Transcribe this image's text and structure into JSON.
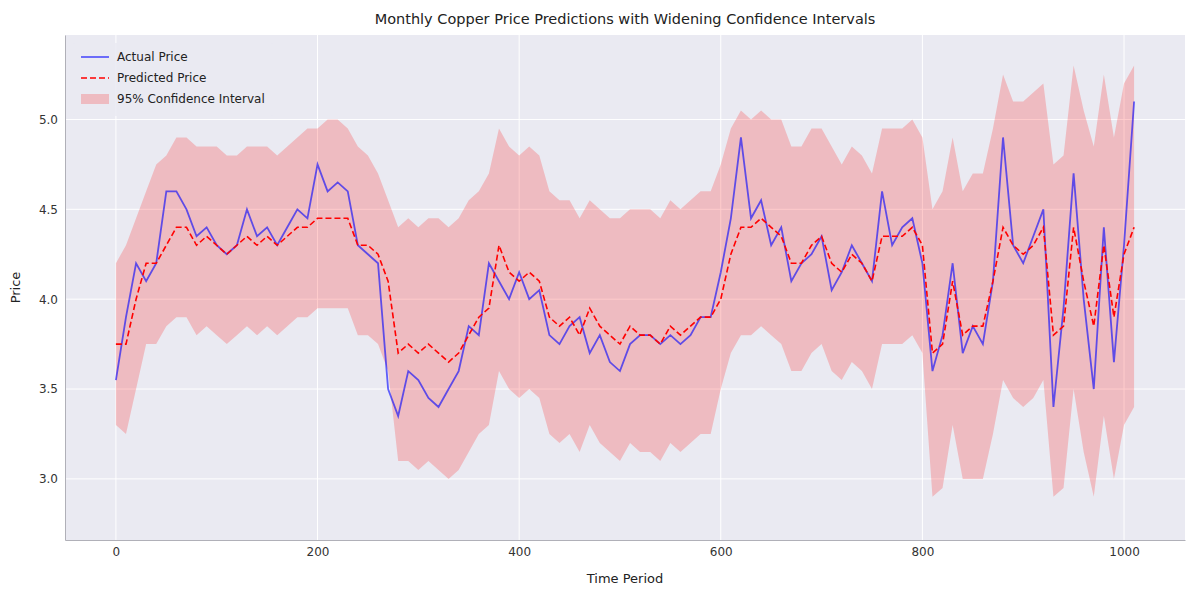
{
  "chart_data": {
    "type": "line",
    "title": "Monthly Copper Price Predictions with Widening Confidence Intervals",
    "x_label": "Time Period",
    "y_label": "Price",
    "x": [
      0,
      10,
      20,
      30,
      40,
      50,
      60,
      70,
      80,
      90,
      100,
      110,
      120,
      130,
      140,
      150,
      160,
      170,
      180,
      190,
      200,
      210,
      220,
      230,
      240,
      250,
      260,
      270,
      280,
      290,
      300,
      310,
      320,
      330,
      340,
      350,
      360,
      370,
      380,
      390,
      400,
      410,
      420,
      430,
      440,
      450,
      460,
      470,
      480,
      490,
      500,
      510,
      520,
      530,
      540,
      550,
      560,
      570,
      580,
      590,
      600,
      610,
      620,
      630,
      640,
      650,
      660,
      670,
      680,
      690,
      700,
      710,
      720,
      730,
      740,
      750,
      760,
      770,
      780,
      790,
      800,
      810,
      820,
      830,
      840,
      850,
      860,
      870,
      880,
      890,
      900,
      910,
      920,
      930,
      940,
      950,
      960,
      970,
      980,
      990,
      1000,
      1010
    ],
    "series": [
      {
        "name": "Actual Price",
        "color": "blue",
        "line_style": "solid",
        "values": [
          3.55,
          3.9,
          4.2,
          4.1,
          4.2,
          4.6,
          4.6,
          4.5,
          4.35,
          4.4,
          4.3,
          4.25,
          4.3,
          4.5,
          4.35,
          4.4,
          4.3,
          4.4,
          4.5,
          4.45,
          4.75,
          4.6,
          4.65,
          4.6,
          4.3,
          4.25,
          4.2,
          3.5,
          3.35,
          3.6,
          3.55,
          3.45,
          3.4,
          3.5,
          3.6,
          3.85,
          3.8,
          4.2,
          4.1,
          4.0,
          4.15,
          4.0,
          4.05,
          3.8,
          3.75,
          3.85,
          3.9,
          3.7,
          3.8,
          3.65,
          3.6,
          3.75,
          3.8,
          3.8,
          3.75,
          3.8,
          3.75,
          3.8,
          3.9,
          3.9,
          4.15,
          4.45,
          4.9,
          4.45,
          4.55,
          4.3,
          4.4,
          4.1,
          4.2,
          4.25,
          4.35,
          4.05,
          4.15,
          4.3,
          4.2,
          4.1,
          4.6,
          4.3,
          4.4,
          4.45,
          4.2,
          3.6,
          3.8,
          4.2,
          3.7,
          3.85,
          3.75,
          4.1,
          4.9,
          4.3,
          4.2,
          4.35,
          4.5,
          3.4,
          3.95,
          4.7,
          4.0,
          3.5,
          4.4,
          3.65,
          4.3,
          5.1
        ]
      },
      {
        "name": "Predicted Price",
        "color": "red",
        "line_style": "dashed",
        "values": [
          3.75,
          3.75,
          4.0,
          4.2,
          4.2,
          4.3,
          4.4,
          4.4,
          4.3,
          4.35,
          4.3,
          4.25,
          4.3,
          4.35,
          4.3,
          4.35,
          4.3,
          4.35,
          4.4,
          4.4,
          4.45,
          4.45,
          4.45,
          4.45,
          4.3,
          4.3,
          4.25,
          4.1,
          3.7,
          3.75,
          3.7,
          3.75,
          3.7,
          3.65,
          3.7,
          3.8,
          3.9,
          3.95,
          4.3,
          4.15,
          4.1,
          4.15,
          4.1,
          3.9,
          3.85,
          3.9,
          3.8,
          3.95,
          3.85,
          3.8,
          3.75,
          3.85,
          3.8,
          3.8,
          3.75,
          3.85,
          3.8,
          3.85,
          3.9,
          3.9,
          4.0,
          4.25,
          4.4,
          4.4,
          4.45,
          4.4,
          4.35,
          4.2,
          4.2,
          4.3,
          4.35,
          4.2,
          4.15,
          4.25,
          4.2,
          4.1,
          4.35,
          4.35,
          4.35,
          4.4,
          4.3,
          3.7,
          3.75,
          4.1,
          3.8,
          3.85,
          3.85,
          4.1,
          4.4,
          4.3,
          4.25,
          4.3,
          4.4,
          3.8,
          3.85,
          4.4,
          4.1,
          3.85,
          4.3,
          3.9,
          4.25,
          4.4
        ]
      },
      {
        "name": "95% Confidence Interval",
        "type": "area",
        "color": "red",
        "lower": [
          3.3,
          3.25,
          3.5,
          3.75,
          3.75,
          3.85,
          3.9,
          3.9,
          3.8,
          3.85,
          3.8,
          3.75,
          3.8,
          3.85,
          3.8,
          3.85,
          3.8,
          3.85,
          3.9,
          3.9,
          3.95,
          3.95,
          3.95,
          3.95,
          3.8,
          3.8,
          3.75,
          3.6,
          3.1,
          3.1,
          3.05,
          3.1,
          3.05,
          3.0,
          3.05,
          3.15,
          3.25,
          3.3,
          3.6,
          3.5,
          3.45,
          3.5,
          3.45,
          3.25,
          3.2,
          3.25,
          3.15,
          3.3,
          3.2,
          3.15,
          3.1,
          3.2,
          3.15,
          3.15,
          3.1,
          3.2,
          3.15,
          3.2,
          3.25,
          3.25,
          3.5,
          3.7,
          3.8,
          3.8,
          3.85,
          3.8,
          3.75,
          3.6,
          3.6,
          3.7,
          3.75,
          3.6,
          3.55,
          3.65,
          3.6,
          3.5,
          3.75,
          3.75,
          3.75,
          3.8,
          3.7,
          2.9,
          2.95,
          3.3,
          3.0,
          3.0,
          3.0,
          3.25,
          3.55,
          3.45,
          3.4,
          3.45,
          3.55,
          2.9,
          2.95,
          3.5,
          3.15,
          2.9,
          3.35,
          3.0,
          3.3,
          3.4
        ],
        "upper": [
          4.2,
          4.3,
          4.45,
          4.6,
          4.75,
          4.8,
          4.9,
          4.9,
          4.85,
          4.85,
          4.85,
          4.8,
          4.8,
          4.85,
          4.85,
          4.85,
          4.8,
          4.85,
          4.9,
          4.95,
          4.95,
          5.0,
          5.0,
          4.95,
          4.85,
          4.8,
          4.7,
          4.55,
          4.4,
          4.45,
          4.4,
          4.45,
          4.45,
          4.4,
          4.45,
          4.55,
          4.6,
          4.7,
          4.95,
          4.85,
          4.8,
          4.85,
          4.8,
          4.6,
          4.55,
          4.55,
          4.45,
          4.55,
          4.5,
          4.45,
          4.45,
          4.5,
          4.5,
          4.5,
          4.45,
          4.55,
          4.5,
          4.55,
          4.6,
          4.6,
          4.75,
          4.95,
          5.05,
          5.0,
          5.05,
          5.0,
          5.0,
          4.85,
          4.85,
          4.95,
          4.95,
          4.85,
          4.75,
          4.85,
          4.8,
          4.7,
          4.95,
          4.95,
          4.95,
          5.0,
          4.9,
          4.5,
          4.6,
          4.9,
          4.6,
          4.7,
          4.7,
          4.95,
          5.25,
          5.1,
          5.1,
          5.15,
          5.2,
          4.75,
          4.8,
          5.3,
          5.05,
          4.85,
          5.25,
          4.9,
          5.2,
          5.3
        ]
      }
    ],
    "xlim": [
      -50.5,
      1060.5
    ],
    "xticks": [
      0,
      200,
      400,
      600,
      800,
      1000
    ],
    "ylim": [
      2.66,
      5.47
    ],
    "yticks": [
      {
        "value": 3,
        "label": "3.0"
      },
      {
        "value": 3.5,
        "label": "3.5"
      },
      {
        "value": 4,
        "label": "4.0"
      },
      {
        "value": 4.5,
        "label": "4.5"
      },
      {
        "value": 5,
        "label": "5.0"
      }
    ],
    "grid": true,
    "legend": "upper left"
  }
}
